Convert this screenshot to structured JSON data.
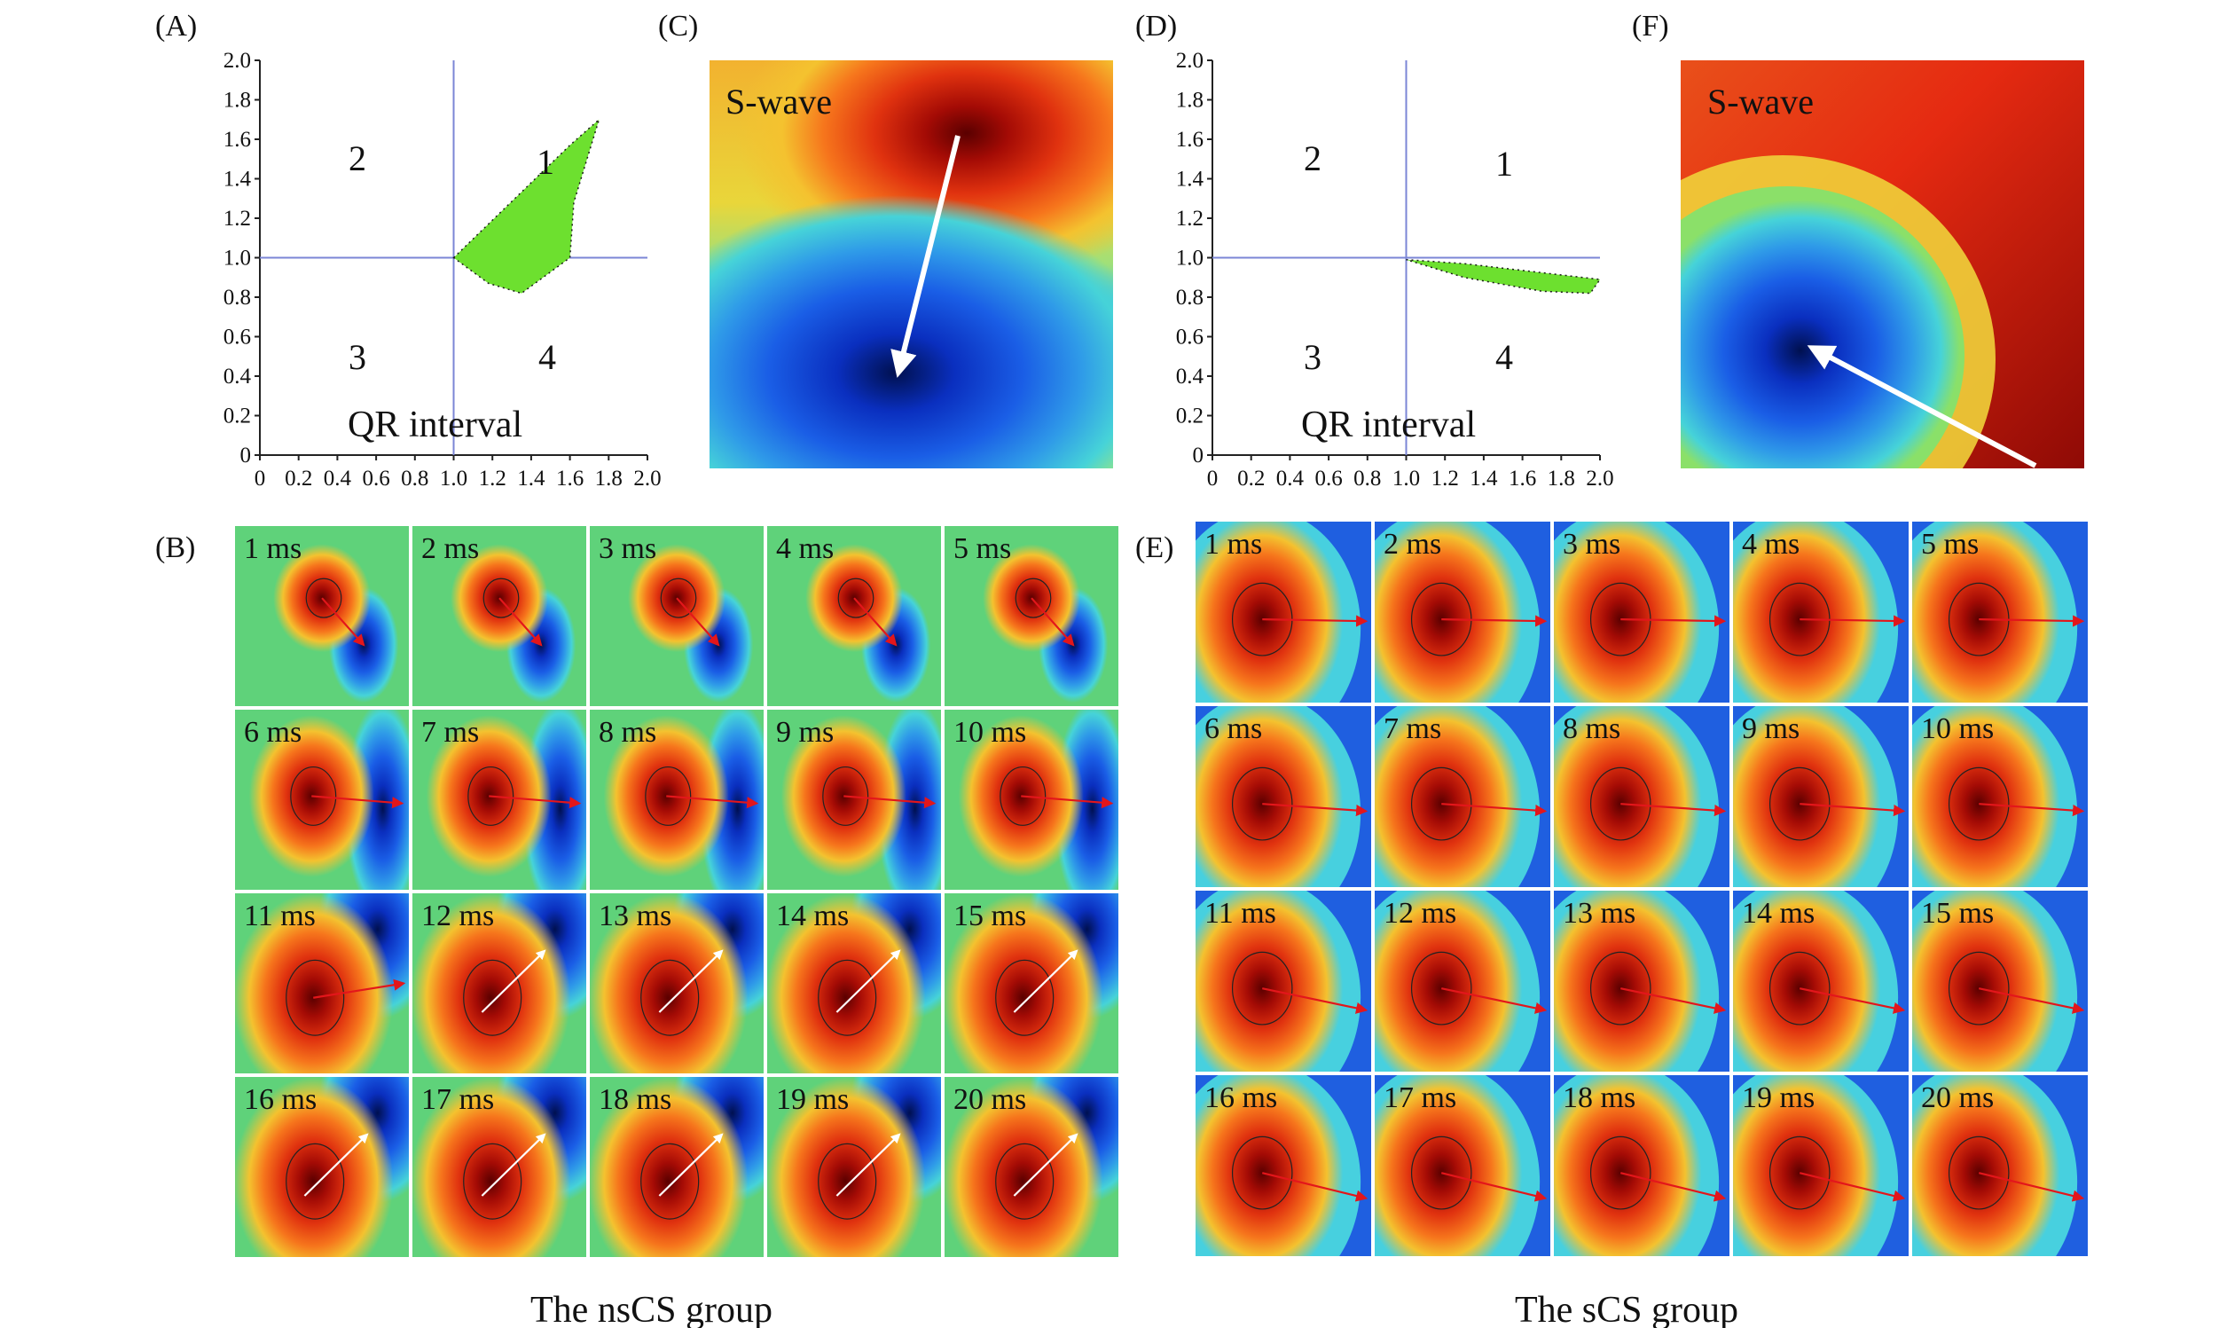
{
  "panels": {
    "A": {
      "label": "(A)",
      "xlabel": "QR interval",
      "ticks": [
        "0",
        "0.2",
        "0.4",
        "0.6",
        "0.8",
        "1.0",
        "1.2",
        "1.4",
        "1.6",
        "1.8",
        "2.0"
      ],
      "quadrants": [
        "1",
        "2",
        "3",
        "4"
      ]
    },
    "B": {
      "label": "(B)"
    },
    "C": {
      "label": "(C)",
      "title": "S-wave"
    },
    "D": {
      "label": "(D)",
      "xlabel": "QR interval",
      "ticks": [
        "0",
        "0.2",
        "0.4",
        "0.6",
        "0.8",
        "1.0",
        "1.2",
        "1.4",
        "1.6",
        "1.8",
        "2.0"
      ],
      "quadrants": [
        "1",
        "2",
        "3",
        "4"
      ]
    },
    "E": {
      "label": "(E)"
    },
    "F": {
      "label": "(F)",
      "title": "S-wave"
    }
  },
  "frames": [
    "1 ms",
    "2 ms",
    "3 ms",
    "4 ms",
    "5 ms",
    "6 ms",
    "7 ms",
    "8 ms",
    "9 ms",
    "10 ms",
    "11 ms",
    "12 ms",
    "13 ms",
    "14 ms",
    "15 ms",
    "16 ms",
    "17 ms",
    "18 ms",
    "19 ms",
    "20 ms"
  ],
  "captions": {
    "left": "The nsCS group",
    "right": "The sCS group"
  },
  "colors": {
    "area_fill": "#6de02f",
    "axis_line": "#7b86d6",
    "arrow_red": "#e3161b",
    "arrow_white": "#ffffff"
  },
  "chart_data": [
    {
      "type": "area",
      "panel": "A",
      "xlabel": "QR interval",
      "xlim": [
        0,
        2.0
      ],
      "ylim": [
        0,
        2.0
      ],
      "polygon": [
        [
          1.0,
          1.0
        ],
        [
          1.6,
          1.57
        ],
        [
          1.75,
          1.7
        ],
        [
          1.62,
          1.28
        ],
        [
          1.6,
          1.0
        ],
        [
          1.35,
          0.82
        ],
        [
          1.18,
          0.87
        ],
        [
          1.0,
          1.0
        ]
      ]
    },
    {
      "type": "area",
      "panel": "D",
      "xlabel": "QR interval",
      "xlim": [
        0,
        2.0
      ],
      "ylim": [
        0,
        2.0
      ],
      "polygon": [
        [
          1.0,
          0.99
        ],
        [
          1.3,
          0.97
        ],
        [
          2.0,
          0.89
        ],
        [
          1.95,
          0.82
        ],
        [
          1.7,
          0.83
        ],
        [
          1.3,
          0.9
        ],
        [
          1.0,
          0.99
        ]
      ]
    }
  ]
}
